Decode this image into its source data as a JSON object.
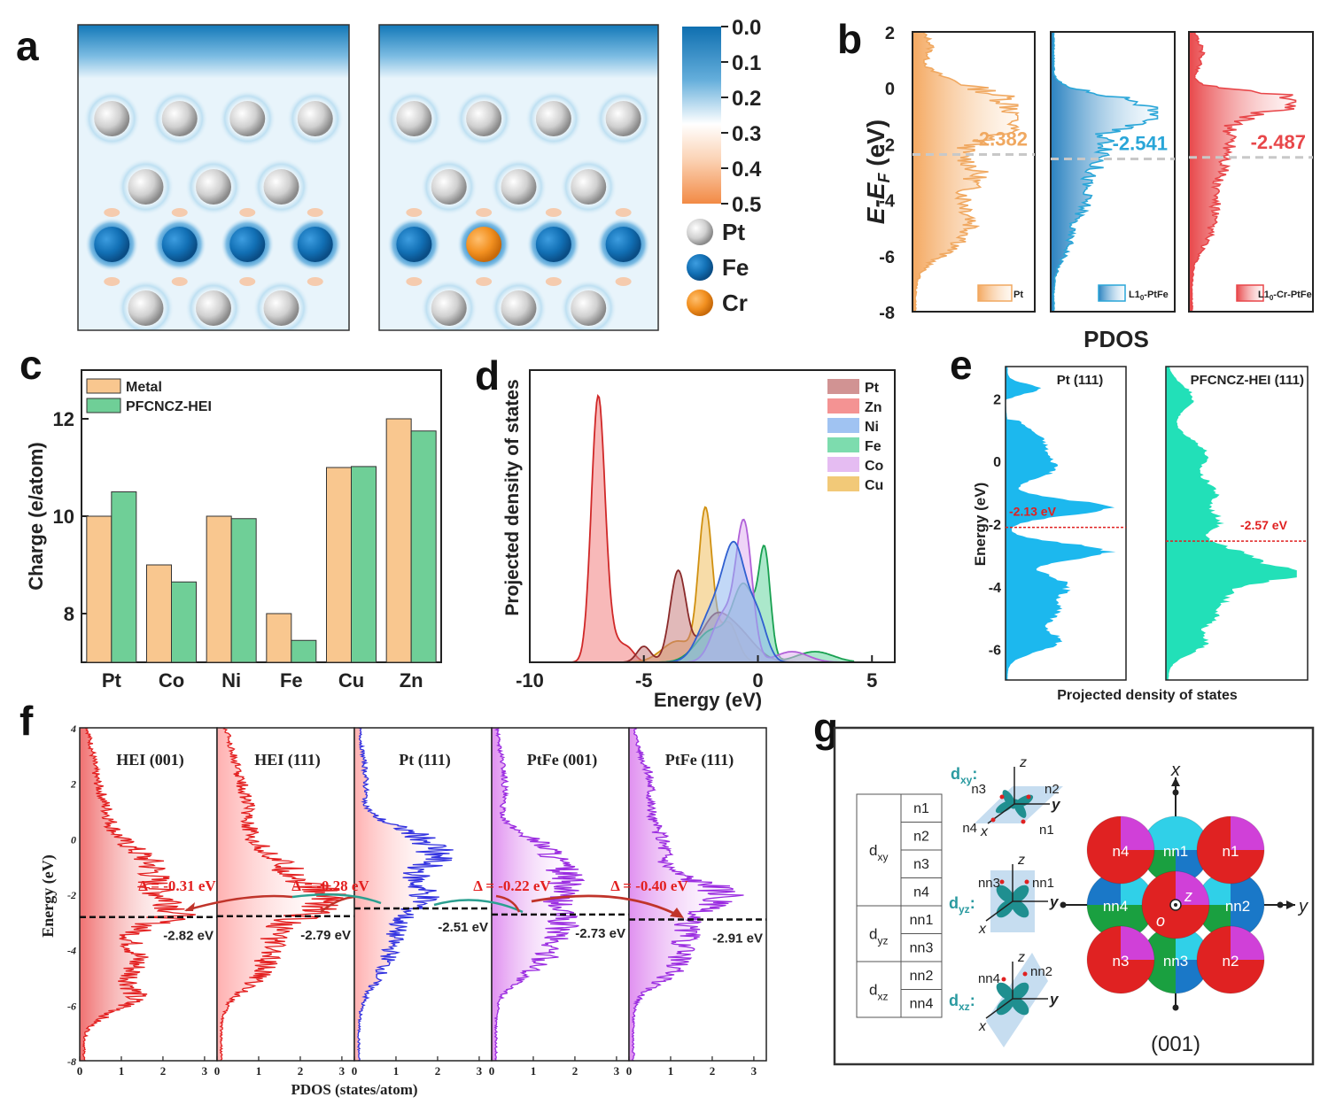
{
  "panel_labels": {
    "a": "a",
    "b": "b",
    "c": "c",
    "d": "d",
    "e": "e",
    "f": "f",
    "g": "g"
  },
  "colors": {
    "pt_orange": "#f0a860",
    "l10_blue": "#2aa6d8",
    "cr_red": "#e8474a",
    "metal": "#f9c78f",
    "hei_green": "#6fcf97",
    "pt_atom": "#d6d6d6",
    "fe_atom": "#1574b8",
    "cr_atom": "#f2901e",
    "fig_f_red": "#e32020",
    "fig_f_blue": "#3232e0",
    "fig_f_purple": "#9a2be0"
  },
  "panel_a": {
    "colorbar_ticks": [
      "0.0",
      "0.1",
      "0.2",
      "0.3",
      "0.4",
      "0.5"
    ],
    "legend": [
      {
        "label": "Pt",
        "color": "#d6d6d6"
      },
      {
        "label": "Fe",
        "color": "#1574b8"
      },
      {
        "label": "Cr",
        "color": "#f2901e"
      }
    ]
  },
  "chart_data": [
    {
      "id": "b",
      "type": "area",
      "ylabel": "E-EF (eV)",
      "xlabel": "PDOS",
      "ylim": [
        -8,
        2
      ],
      "yticks": [
        "2",
        "0",
        "-2",
        "-4",
        "-6",
        "-8"
      ],
      "series": [
        {
          "name": "Pt",
          "d_band_center": -2.382,
          "label": "-2.382",
          "color": "#f0a860"
        },
        {
          "name": "L10-PtFe",
          "d_band_center": -2.541,
          "label": "-2.541",
          "color": "#2aa6d8"
        },
        {
          "name": "L10-Cr-PtFe",
          "d_band_center": -2.487,
          "label": "-2.487",
          "color": "#e8474a"
        }
      ]
    },
    {
      "id": "c",
      "type": "bar",
      "ylabel": "Charge (e/atom)",
      "categories": [
        "Pt",
        "Co",
        "Ni",
        "Fe",
        "Cu",
        "Zn"
      ],
      "ylim": [
        7,
        13
      ],
      "yticks": [
        "8",
        "10",
        "12"
      ],
      "series": [
        {
          "name": "Metal",
          "values": [
            10,
            9,
            10,
            8,
            11,
            12
          ]
        },
        {
          "name": "PFCNCZ-HEI",
          "values": [
            10.5,
            8.65,
            9.95,
            7.45,
            11.02,
            11.75
          ]
        }
      ]
    },
    {
      "id": "d",
      "type": "area",
      "xlabel": "Energy (eV)",
      "ylabel": "Projected density of states",
      "xlim": [
        -10,
        6
      ],
      "xticks": [
        "-10",
        "-5",
        "0",
        "5"
      ],
      "series": [
        {
          "name": "Pt",
          "peak": -3.5,
          "color": "#c98080"
        },
        {
          "name": "Zn",
          "peak": -7.0,
          "color": "#f28080"
        },
        {
          "name": "Ni",
          "peak": -1.0,
          "color": "#8fb8f0"
        },
        {
          "name": "Fe",
          "peak": 0.3,
          "color": "#66d6a0"
        },
        {
          "name": "Co",
          "peak": -0.6,
          "color": "#e0b0f0"
        },
        {
          "name": "Cu",
          "peak": -2.3,
          "color": "#f0c060"
        }
      ]
    },
    {
      "id": "e",
      "type": "area",
      "xlabel": "Projected density of states",
      "ylabel": "Energy (eV)",
      "ylim": [
        -7,
        3
      ],
      "yticks": [
        "2",
        "0",
        "-2",
        "-4",
        "-6"
      ],
      "series": [
        {
          "name": "Pt (111)",
          "d_band_center": -2.13,
          "label": "-2.13 eV",
          "color": "#1cb8ee"
        },
        {
          "name": "PFCNCZ-HEI (111)",
          "d_band_center": -2.57,
          "label": "-2.57 eV",
          "color": "#22e0b8"
        }
      ]
    },
    {
      "id": "f",
      "type": "line",
      "xlabel": "PDOS (states/atom)",
      "ylabel": "Energy (eV)",
      "ylim": [
        -8,
        4
      ],
      "yticks": [
        "4",
        "2",
        "0",
        "-2",
        "-4",
        "-6",
        "-8"
      ],
      "xticks": [
        "0",
        "1",
        "2",
        "3"
      ],
      "series": [
        {
          "name": "HEI (001)",
          "d_band_center": -2.82,
          "label": "-2.82 eV",
          "color": "#e32020"
        },
        {
          "name": "HEI (111)",
          "d_band_center": -2.79,
          "label": "-2.79 eV",
          "color": "#e32020"
        },
        {
          "name": "Pt (111)",
          "d_band_center": -2.51,
          "label": "-2.51 eV",
          "color": "#3232e0"
        },
        {
          "name": "PtFe (001)",
          "d_band_center": -2.73,
          "label": "-2.73 eV",
          "color": "#9a2be0"
        },
        {
          "name": "PtFe (111)",
          "d_band_center": -2.91,
          "label": "-2.91 eV",
          "color": "#9a2be0"
        }
      ],
      "annotations": [
        "Δ = -0.31 eV",
        "Δ = -0.28 eV",
        "Δ = -0.22 eV",
        "Δ = -0.40 eV"
      ]
    }
  ],
  "panel_g": {
    "table": [
      {
        "group": "d",
        "sub": "xy",
        "rows": [
          "n1",
          "n2",
          "n3",
          "n4"
        ]
      },
      {
        "group": "d",
        "sub": "yz",
        "rows": [
          "nn1",
          "nn3"
        ]
      },
      {
        "group": "d",
        "sub": "xz",
        "rows": [
          "nn2",
          "nn4"
        ]
      }
    ],
    "orbitals": [
      {
        "d": "d",
        "sub": "xy",
        "labels": [
          "n3",
          "n2",
          "n4",
          "n1"
        ]
      },
      {
        "d": "d",
        "sub": "yz",
        "labels": [
          "nn3",
          "nn1"
        ]
      },
      {
        "d": "d",
        "sub": "xz",
        "labels": [
          "nn4",
          "nn2"
        ]
      }
    ],
    "axes": {
      "x": "x",
      "y": "y",
      "z": "z",
      "o": "o"
    },
    "lattice_labels": [
      "n4",
      "nn1",
      "n1",
      "nn4",
      "nn2",
      "n3",
      "nn3",
      "n2"
    ],
    "caption": "(001)"
  }
}
